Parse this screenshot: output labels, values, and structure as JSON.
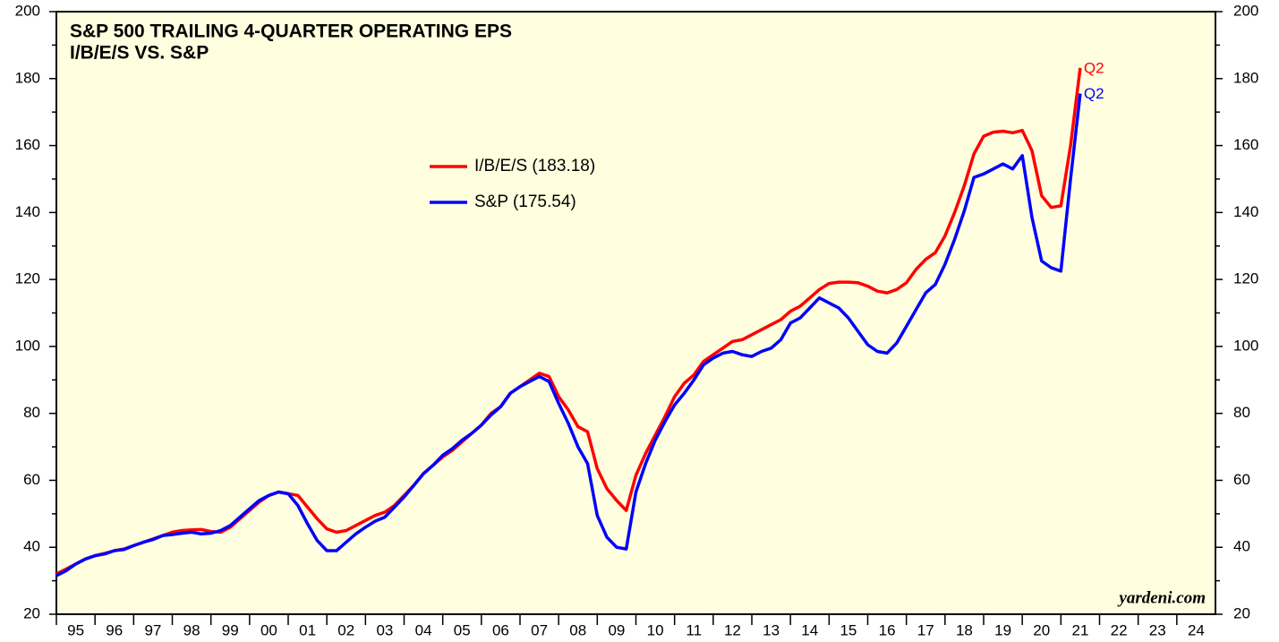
{
  "chart_data": {
    "type": "line",
    "title": "S&P 500 TRAILING 4-QUARTER OPERATING EPS",
    "subtitle": "I/B/E/S VS. S&P",
    "source": "yardeni.com",
    "x": [
      1995,
      1995.25,
      1995.5,
      1995.75,
      1996,
      1996.25,
      1996.5,
      1996.75,
      1997,
      1997.25,
      1997.5,
      1997.75,
      1998,
      1998.25,
      1998.5,
      1998.75,
      1999,
      1999.25,
      1999.5,
      1999.75,
      2000,
      2000.25,
      2000.5,
      2000.75,
      2001,
      2001.25,
      2001.5,
      2001.75,
      2002,
      2002.25,
      2002.5,
      2002.75,
      2003,
      2003.25,
      2003.5,
      2003.75,
      2004,
      2004.25,
      2004.5,
      2004.75,
      2005,
      2005.25,
      2005.5,
      2005.75,
      2006,
      2006.25,
      2006.5,
      2006.75,
      2007,
      2007.25,
      2007.5,
      2007.75,
      2008,
      2008.25,
      2008.5,
      2008.75,
      2009,
      2009.25,
      2009.5,
      2009.75,
      2010,
      2010.25,
      2010.5,
      2010.75,
      2011,
      2011.25,
      2011.5,
      2011.75,
      2012,
      2012.25,
      2012.5,
      2012.75,
      2013,
      2013.25,
      2013.5,
      2013.75,
      2014,
      2014.25,
      2014.5,
      2014.75,
      2015,
      2015.25,
      2015.5,
      2015.75,
      2016,
      2016.25,
      2016.5,
      2016.75,
      2017,
      2017.25,
      2017.5,
      2017.75,
      2018,
      2018.25,
      2018.5,
      2018.75,
      2019,
      2019.25,
      2019.5,
      2019.75,
      2020,
      2020.25,
      2020.5,
      2020.75,
      2021,
      2021.25,
      2021.5
    ],
    "series": [
      {
        "name": "I/B/E/S (183.18)",
        "color": "#ff0000",
        "end_label": "Q2",
        "values": [
          32,
          33.5,
          35,
          36.5,
          37.5,
          38.2,
          39,
          39.5,
          40.5,
          41.5,
          42.5,
          43.5,
          44.5,
          45,
          45.2,
          45.3,
          44.7,
          44.5,
          46,
          48.5,
          51,
          53.5,
          55.5,
          56.5,
          56,
          55.5,
          52,
          48.5,
          45.5,
          44.5,
          45,
          46.5,
          48,
          49.5,
          50.5,
          52.5,
          55.5,
          58.5,
          62,
          64.5,
          67,
          69,
          71.5,
          74,
          76.5,
          80,
          82,
          86,
          88,
          90,
          92,
          91,
          85,
          81,
          76,
          74.5,
          63.5,
          57.5,
          54,
          51,
          61.5,
          68,
          73.5,
          79,
          85,
          89,
          91.5,
          95.5,
          97.5,
          99.5,
          101.5,
          102,
          103.5,
          105,
          106.5,
          108,
          110.5,
          112,
          114.5,
          117,
          118.8,
          119.2,
          119.2,
          119,
          118,
          116.5,
          116,
          117,
          119,
          123,
          126,
          128,
          133,
          140,
          148,
          157.5,
          162.8,
          164,
          164.3,
          163.8,
          164.5,
          158.5,
          145,
          141.5,
          142,
          160,
          183.18
        ]
      },
      {
        "name": "S&P (175.54)",
        "color": "#0000ff",
        "end_label": "Q2",
        "values": [
          31.5,
          33,
          35,
          36.5,
          37.5,
          38,
          39,
          39.3,
          40.5,
          41.5,
          42.3,
          43.5,
          43.8,
          44.2,
          44.5,
          44,
          44.2,
          45,
          46.5,
          49,
          51.5,
          54,
          55.5,
          56.5,
          56,
          52.5,
          47,
          42,
          39,
          39,
          41.5,
          44,
          46,
          47.8,
          49,
          52,
          55,
          58.5,
          62,
          64.5,
          67.5,
          69.5,
          72,
          74,
          76.5,
          79.5,
          82,
          86,
          88,
          89.5,
          91,
          89.5,
          83,
          77,
          70,
          65,
          49.5,
          43,
          40,
          39.5,
          56.5,
          65,
          72,
          77.5,
          82.5,
          86,
          90,
          94.5,
          96.5,
          98,
          98.5,
          97.5,
          97,
          98.5,
          99.5,
          102,
          107,
          108.5,
          111.5,
          114.5,
          113,
          111.5,
          108.5,
          104.5,
          100.5,
          98.5,
          98,
          101,
          106,
          111,
          116,
          118.5,
          124.5,
          132,
          140.5,
          150.5,
          151.5,
          153,
          154.5,
          153,
          157,
          138.5,
          125.5,
          123.5,
          122.5,
          150,
          175.54
        ]
      }
    ],
    "xlim": [
      1995,
      2025
    ],
    "xticks": [
      {
        "value": 1995.5,
        "label": "95"
      },
      {
        "value": 1996.5,
        "label": "96"
      },
      {
        "value": 1997.5,
        "label": "97"
      },
      {
        "value": 1998.5,
        "label": "98"
      },
      {
        "value": 1999.5,
        "label": "99"
      },
      {
        "value": 2000.5,
        "label": "00"
      },
      {
        "value": 2001.5,
        "label": "01"
      },
      {
        "value": 2002.5,
        "label": "02"
      },
      {
        "value": 2003.5,
        "label": "03"
      },
      {
        "value": 2004.5,
        "label": "04"
      },
      {
        "value": 2005.5,
        "label": "05"
      },
      {
        "value": 2006.5,
        "label": "06"
      },
      {
        "value": 2007.5,
        "label": "07"
      },
      {
        "value": 2008.5,
        "label": "08"
      },
      {
        "value": 2009.5,
        "label": "09"
      },
      {
        "value": 2010.5,
        "label": "10"
      },
      {
        "value": 2011.5,
        "label": "11"
      },
      {
        "value": 2012.5,
        "label": "12"
      },
      {
        "value": 2013.5,
        "label": "13"
      },
      {
        "value": 2014.5,
        "label": "14"
      },
      {
        "value": 2015.5,
        "label": "15"
      },
      {
        "value": 2016.5,
        "label": "16"
      },
      {
        "value": 2017.5,
        "label": "17"
      },
      {
        "value": 2018.5,
        "label": "18"
      },
      {
        "value": 2019.5,
        "label": "19"
      },
      {
        "value": 2020.5,
        "label": "20"
      },
      {
        "value": 2021.5,
        "label": "21"
      },
      {
        "value": 2022.5,
        "label": "22"
      },
      {
        "value": 2023.5,
        "label": "23"
      },
      {
        "value": 2024.5,
        "label": "24"
      }
    ],
    "ylim": [
      20,
      200
    ],
    "yticks": [
      20,
      40,
      60,
      80,
      100,
      120,
      140,
      160,
      180,
      200
    ],
    "yminorticks": [
      30,
      50,
      70,
      90,
      110,
      130,
      150,
      170,
      190
    ],
    "y2lim": [
      20,
      200
    ],
    "y2ticks": [
      20,
      40,
      60,
      80,
      100,
      120,
      140,
      160,
      180,
      200
    ],
    "legend": "upper-left"
  }
}
